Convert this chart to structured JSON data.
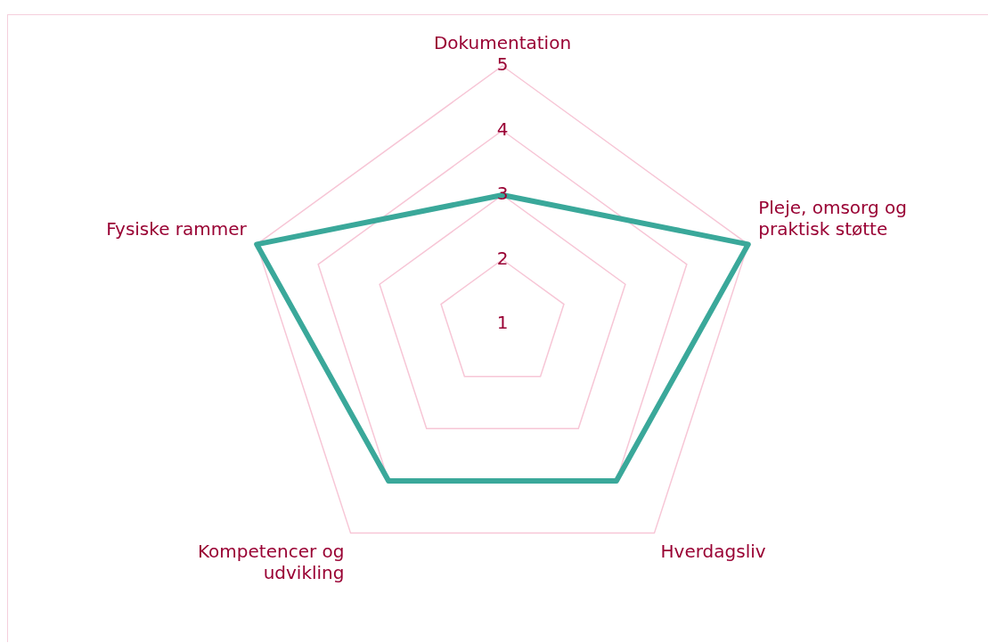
{
  "chart_data": {
    "type": "radar",
    "categories": [
      "Dokumentation",
      "Pleje, omsorg og praktisk støtte",
      "Hverdagsliv",
      "Kompetencer og udvikling",
      "Fysiske rammer"
    ],
    "series": [
      {
        "color": "#3aa89a",
        "values": [
          3,
          5,
          4,
          4,
          5
        ]
      }
    ],
    "ylim": [
      1,
      5
    ],
    "yticks": [
      1,
      2,
      3,
      4,
      5
    ],
    "grid": true,
    "legend": false,
    "marker": "none",
    "line_style": "solid"
  }
}
